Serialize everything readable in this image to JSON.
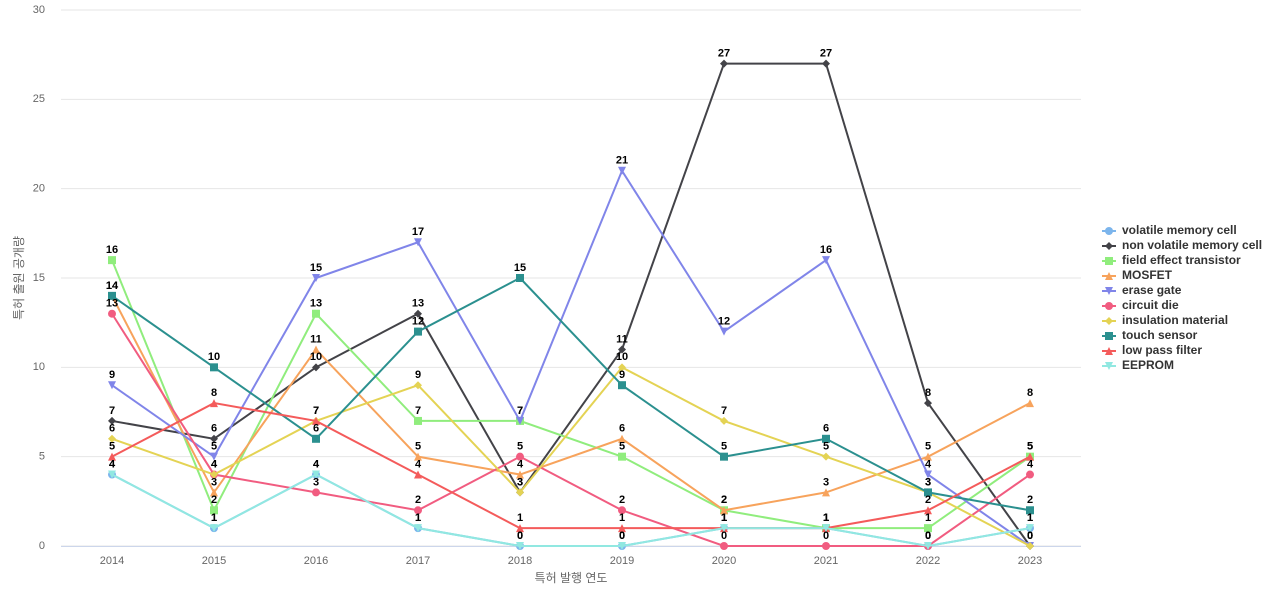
{
  "chart_data": {
    "type": "line",
    "xlabel": "특허 발행 연도",
    "ylabel": "특허 출원 공개량",
    "categories": [
      "2014",
      "2015",
      "2016",
      "2017",
      "2018",
      "2019",
      "2020",
      "2021",
      "2022",
      "2023"
    ],
    "ylim": [
      0,
      30
    ],
    "yticks": [
      0,
      5,
      10,
      15,
      20,
      25,
      30
    ],
    "grid": true,
    "legend": "right",
    "series": [
      {
        "name": "volatile memory cell",
        "color": "#7cb5ec",
        "symbol": "circle",
        "values": [
          4,
          1,
          4,
          1,
          0,
          0,
          1,
          1,
          0,
          1
        ]
      },
      {
        "name": "non volatile memory cell",
        "color": "#434348",
        "symbol": "diamond",
        "values": [
          7,
          6,
          10,
          13,
          3,
          11,
          27,
          27,
          8,
          0
        ]
      },
      {
        "name": "field effect transistor",
        "color": "#90ed7d",
        "symbol": "square",
        "values": [
          16,
          2,
          13,
          7,
          7,
          5,
          2,
          1,
          1,
          5
        ]
      },
      {
        "name": "MOSFET",
        "color": "#f7a35c",
        "symbol": "triangle",
        "values": [
          14,
          3,
          11,
          5,
          4,
          6,
          2,
          3,
          5,
          8
        ]
      },
      {
        "name": "erase gate",
        "color": "#8085e9",
        "symbol": "triangle-down",
        "values": [
          9,
          5,
          15,
          17,
          7,
          21,
          12,
          16,
          4,
          0
        ]
      },
      {
        "name": "circuit die",
        "color": "#f15c80",
        "symbol": "circle",
        "values": [
          13,
          4,
          3,
          2,
          5,
          2,
          0,
          0,
          0,
          4
        ]
      },
      {
        "name": "insulation material",
        "color": "#e4d354",
        "symbol": "diamond",
        "values": [
          6,
          4,
          7,
          9,
          3,
          10,
          7,
          5,
          3,
          0
        ]
      },
      {
        "name": "touch sensor",
        "color": "#2b908f",
        "symbol": "square",
        "values": [
          14,
          10,
          6,
          12,
          15,
          9,
          5,
          6,
          3,
          2
        ]
      },
      {
        "name": "low pass filter",
        "color": "#f45b5b",
        "symbol": "triangle",
        "values": [
          5,
          8,
          7,
          4,
          1,
          1,
          1,
          1,
          2,
          5
        ]
      },
      {
        "name": "EEPROM",
        "color": "#91e8e1",
        "symbol": "triangle-down",
        "values": [
          4,
          1,
          4,
          1,
          0,
          0,
          1,
          1,
          0,
          1
        ]
      }
    ]
  }
}
